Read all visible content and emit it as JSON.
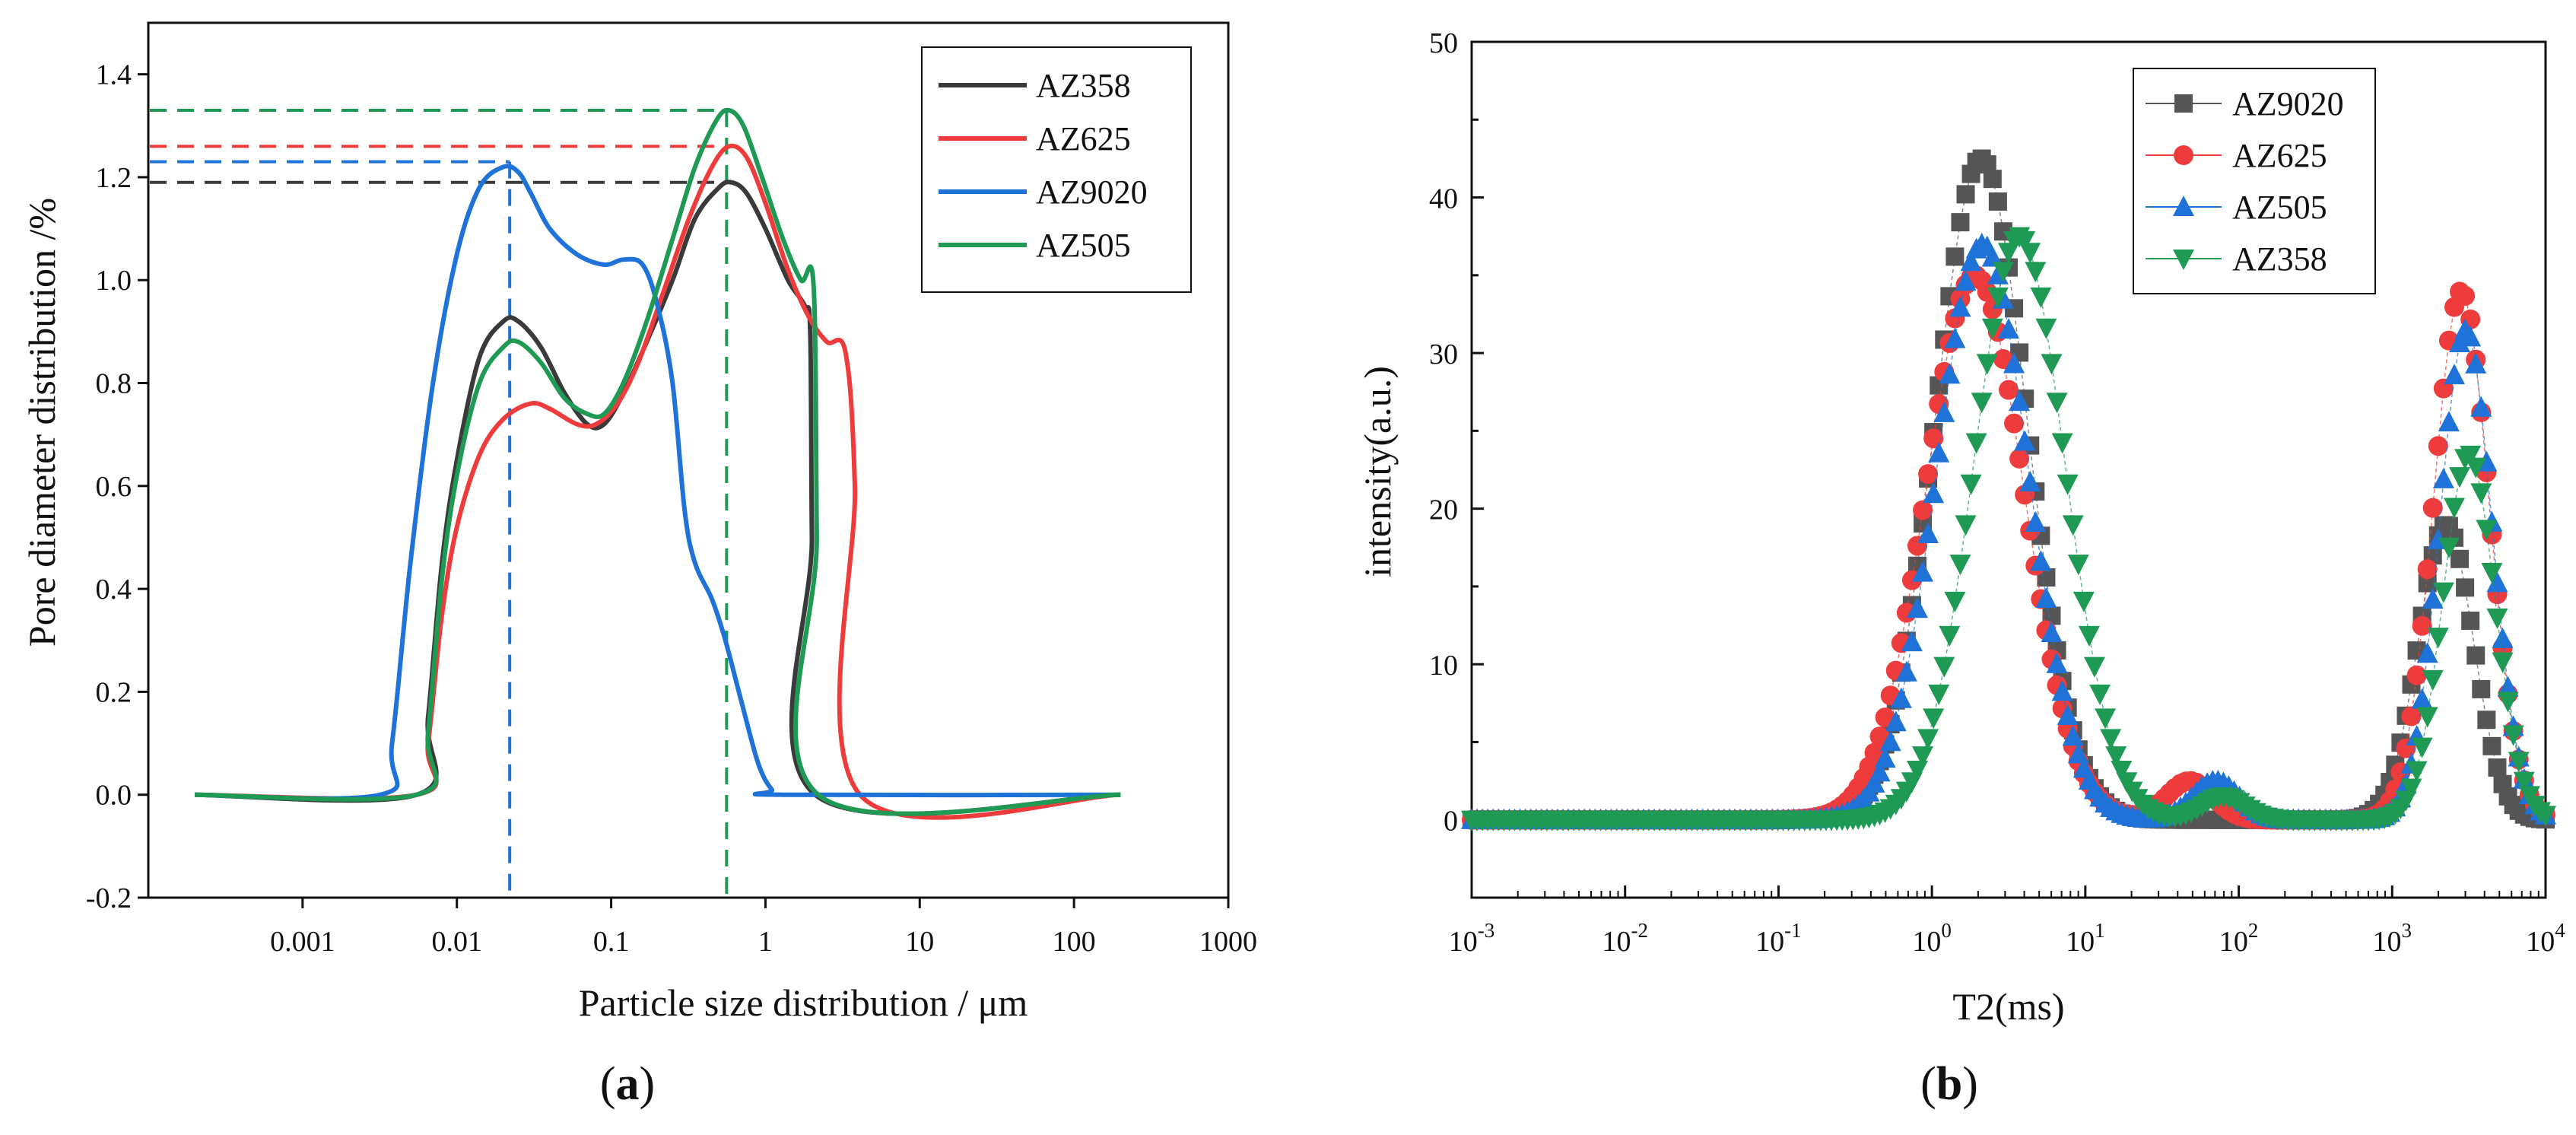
{
  "figure_captions": {
    "panel_a": {
      "open": "(",
      "letter": "a",
      "close": ")"
    },
    "panel_b": {
      "open": "(",
      "letter": "b",
      "close": ")"
    }
  },
  "chart_data": [
    {
      "type": "line",
      "panel": "a",
      "xlabel": "Particle size distribution / μm",
      "ylabel": "Pore diameter distribution /%",
      "x_scale": "log",
      "xlim": [
        0.0001,
        1000
      ],
      "ylim": [
        -0.2,
        1.5
      ],
      "x_ticks": [
        0.001,
        0.01,
        0.1,
        1,
        10,
        100,
        1000
      ],
      "x_tick_labels": [
        "0.001",
        "0.01",
        "0.1",
        "1",
        "10",
        "100",
        "1000"
      ],
      "y_ticks": [
        -0.2,
        0.0,
        0.2,
        0.4,
        0.6,
        0.8,
        1.0,
        1.2,
        1.4
      ],
      "y_tick_labels": [
        "-0.2",
        "0.0",
        "0.2",
        "0.4",
        "0.6",
        "0.8",
        "1.0",
        "1.2",
        "1.4"
      ],
      "legend_position": "top-right",
      "series": [
        {
          "name": "AZ358",
          "color": "#3a3a3a",
          "points": [
            [
              0.0002,
              0
            ],
            [
              0.0055,
              0
            ],
            [
              0.0065,
              0.15
            ],
            [
              0.008,
              0.45
            ],
            [
              0.01,
              0.65
            ],
            [
              0.014,
              0.85
            ],
            [
              0.02,
              0.92
            ],
            [
              0.025,
              0.92
            ],
            [
              0.035,
              0.87
            ],
            [
              0.05,
              0.78
            ],
            [
              0.07,
              0.72
            ],
            [
              0.09,
              0.72
            ],
            [
              0.12,
              0.78
            ],
            [
              0.17,
              0.88
            ],
            [
              0.25,
              1.0
            ],
            [
              0.35,
              1.12
            ],
            [
              0.5,
              1.18
            ],
            [
              0.6,
              1.19
            ],
            [
              0.75,
              1.17
            ],
            [
              1.0,
              1.1
            ],
            [
              1.4,
              1.0
            ],
            [
              1.8,
              0.95
            ],
            [
              1.95,
              0.9
            ],
            [
              2.0,
              0.5
            ],
            [
              2.1,
              0
            ],
            [
              200,
              0
            ]
          ]
        },
        {
          "name": "AZ625",
          "color": "#ee3b3b",
          "points": [
            [
              0.0002,
              0
            ],
            [
              0.0055,
              0
            ],
            [
              0.0065,
              0.1
            ],
            [
              0.008,
              0.35
            ],
            [
              0.01,
              0.52
            ],
            [
              0.014,
              0.66
            ],
            [
              0.02,
              0.73
            ],
            [
              0.03,
              0.76
            ],
            [
              0.04,
              0.75
            ],
            [
              0.06,
              0.72
            ],
            [
              0.08,
              0.72
            ],
            [
              0.11,
              0.76
            ],
            [
              0.15,
              0.84
            ],
            [
              0.22,
              0.98
            ],
            [
              0.32,
              1.12
            ],
            [
              0.45,
              1.22
            ],
            [
              0.58,
              1.26
            ],
            [
              0.75,
              1.24
            ],
            [
              1.0,
              1.15
            ],
            [
              1.4,
              1.02
            ],
            [
              1.9,
              0.93
            ],
            [
              2.5,
              0.88
            ],
            [
              3.3,
              0.86
            ],
            [
              3.8,
              0.6
            ],
            [
              4.1,
              0
            ],
            [
              200,
              0
            ]
          ]
        },
        {
          "name": "AZ9020",
          "color": "#1f72d8",
          "points": [
            [
              0.0002,
              0
            ],
            [
              0.0032,
              0
            ],
            [
              0.0038,
              0.1
            ],
            [
              0.005,
              0.45
            ],
            [
              0.007,
              0.8
            ],
            [
              0.01,
              1.05
            ],
            [
              0.014,
              1.18
            ],
            [
              0.02,
              1.22
            ],
            [
              0.025,
              1.21
            ],
            [
              0.03,
              1.17
            ],
            [
              0.04,
              1.1
            ],
            [
              0.06,
              1.05
            ],
            [
              0.09,
              1.03
            ],
            [
              0.12,
              1.04
            ],
            [
              0.16,
              1.03
            ],
            [
              0.2,
              0.95
            ],
            [
              0.25,
              0.8
            ],
            [
              0.3,
              0.55
            ],
            [
              0.35,
              0.45
            ],
            [
              0.45,
              0.38
            ],
            [
              0.55,
              0.3
            ],
            [
              0.7,
              0.18
            ],
            [
              0.9,
              0.06
            ],
            [
              1.1,
              0.01
            ],
            [
              1.3,
              0
            ],
            [
              200,
              0
            ]
          ]
        },
        {
          "name": "AZ505",
          "color": "#1f9a55",
          "points": [
            [
              0.0002,
              0
            ],
            [
              0.0055,
              0
            ],
            [
              0.0065,
              0.12
            ],
            [
              0.008,
              0.42
            ],
            [
              0.01,
              0.62
            ],
            [
              0.014,
              0.8
            ],
            [
              0.02,
              0.87
            ],
            [
              0.025,
              0.88
            ],
            [
              0.035,
              0.84
            ],
            [
              0.05,
              0.77
            ],
            [
              0.07,
              0.74
            ],
            [
              0.09,
              0.74
            ],
            [
              0.12,
              0.8
            ],
            [
              0.17,
              0.92
            ],
            [
              0.25,
              1.08
            ],
            [
              0.35,
              1.22
            ],
            [
              0.48,
              1.31
            ],
            [
              0.58,
              1.33
            ],
            [
              0.72,
              1.3
            ],
            [
              0.95,
              1.2
            ],
            [
              1.3,
              1.08
            ],
            [
              1.7,
              1.0
            ],
            [
              2.05,
              0.99
            ],
            [
              2.15,
              0.5
            ],
            [
              2.2,
              0
            ],
            [
              200,
              0
            ]
          ]
        }
      ],
      "annotations": {
        "horizontal_dashed": [
          {
            "series": "AZ505",
            "y": 1.33
          },
          {
            "series": "AZ625",
            "y": 1.26
          },
          {
            "series": "AZ9020",
            "y": 1.23
          },
          {
            "series": "AZ358",
            "y": 1.19
          }
        ],
        "vertical_dashed": [
          {
            "series": "AZ9020",
            "x": 0.022,
            "y_top": 1.23
          },
          {
            "series": "AZ505",
            "x": 0.56,
            "y_top": 1.33
          }
        ]
      }
    },
    {
      "type": "scatter",
      "panel": "b",
      "xlabel": "T2(ms)",
      "ylabel": "intensity(a.u.)",
      "x_scale": "log",
      "xlim": [
        0.001,
        10000
      ],
      "ylim": [
        -5,
        50
      ],
      "x_tick_labels": [
        {
          "base": "10",
          "exp": "-3"
        },
        {
          "base": "10",
          "exp": "-2"
        },
        {
          "base": "10",
          "exp": "-1"
        },
        {
          "base": "10",
          "exp": "0"
        },
        {
          "base": "10",
          "exp": "1"
        },
        {
          "base": "10",
          "exp": "2"
        },
        {
          "base": "10",
          "exp": "3"
        },
        {
          "base": "10",
          "exp": "4"
        }
      ],
      "y_ticks": [
        0,
        10,
        20,
        30,
        40,
        50
      ],
      "y_tick_labels": [
        "0",
        "10",
        "20",
        "30",
        "40",
        "50"
      ],
      "legend_position": "top-right",
      "series": [
        {
          "name": "AZ9020",
          "marker": "square",
          "color": "#555555",
          "peaks": [
            {
              "mu_log10": 0.32,
              "sigma": 0.3,
              "amp": 42.5
            },
            {
              "mu_log10": 3.35,
              "sigma": 0.18,
              "amp": 19
            }
          ]
        },
        {
          "name": "AZ625",
          "marker": "circle",
          "color": "#ee3b3b",
          "peaks": [
            {
              "mu_log10": 0.28,
              "sigma": 0.32,
              "amp": 35
            },
            {
              "mu_log10": 1.68,
              "sigma": 0.15,
              "amp": 2.5
            },
            {
              "mu_log10": 3.45,
              "sigma": 0.18,
              "amp": 34
            }
          ]
        },
        {
          "name": "AZ505",
          "marker": "triangle-up",
          "color": "#1f72d8",
          "peaks": [
            {
              "mu_log10": 0.33,
              "sigma": 0.3,
              "amp": 37
            },
            {
              "mu_log10": 1.85,
              "sigma": 0.15,
              "amp": 2.5
            },
            {
              "mu_log10": 3.48,
              "sigma": 0.17,
              "amp": 31.5
            }
          ]
        },
        {
          "name": "AZ358",
          "marker": "triangle-down",
          "color": "#1f9a55",
          "peaks": [
            {
              "mu_log10": 0.57,
              "sigma": 0.3,
              "amp": 37.5
            },
            {
              "mu_log10": 1.9,
              "sigma": 0.14,
              "amp": 1.5
            },
            {
              "mu_log10": 3.5,
              "sigma": 0.17,
              "amp": 23.5
            }
          ]
        }
      ]
    }
  ]
}
